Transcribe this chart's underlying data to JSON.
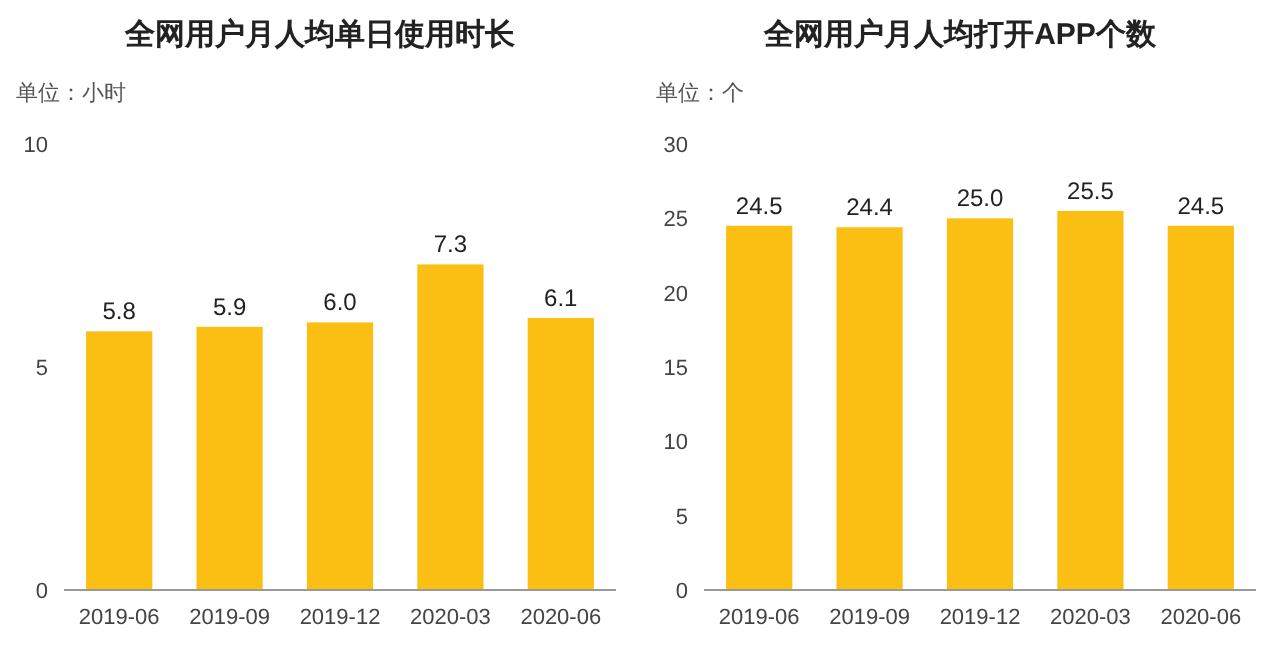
{
  "chart_data": [
    {
      "type": "bar",
      "title": "全网用户月人均单日使用时长",
      "ylabel": "单位：小时",
      "categories": [
        "2019-06",
        "2019-09",
        "2019-12",
        "2020-03",
        "2020-06"
      ],
      "series": [
        {
          "color": "#fbbf14",
          "values": [
            5.8,
            5.9,
            6.0,
            7.3,
            6.1
          ],
          "value_labels": [
            "5.8",
            "5.9",
            "6.0",
            "7.3",
            "6.1"
          ]
        }
      ],
      "ylim": [
        0,
        10
      ],
      "yticks": [
        0,
        5,
        10
      ]
    },
    {
      "type": "bar",
      "title": "全网用户月人均打开APP个数",
      "ylabel": "单位：个",
      "categories": [
        "2019-06",
        "2019-09",
        "2019-12",
        "2020-03",
        "2020-06"
      ],
      "series": [
        {
          "color": "#fbbf14",
          "values": [
            24.5,
            24.4,
            25.0,
            25.5,
            24.5
          ],
          "value_labels": [
            "24.5",
            "24.4",
            "25.0",
            "25.5",
            "24.5"
          ]
        }
      ],
      "ylim": [
        0,
        30
      ],
      "yticks": [
        0,
        5,
        10,
        15,
        20,
        25,
        30
      ]
    }
  ]
}
